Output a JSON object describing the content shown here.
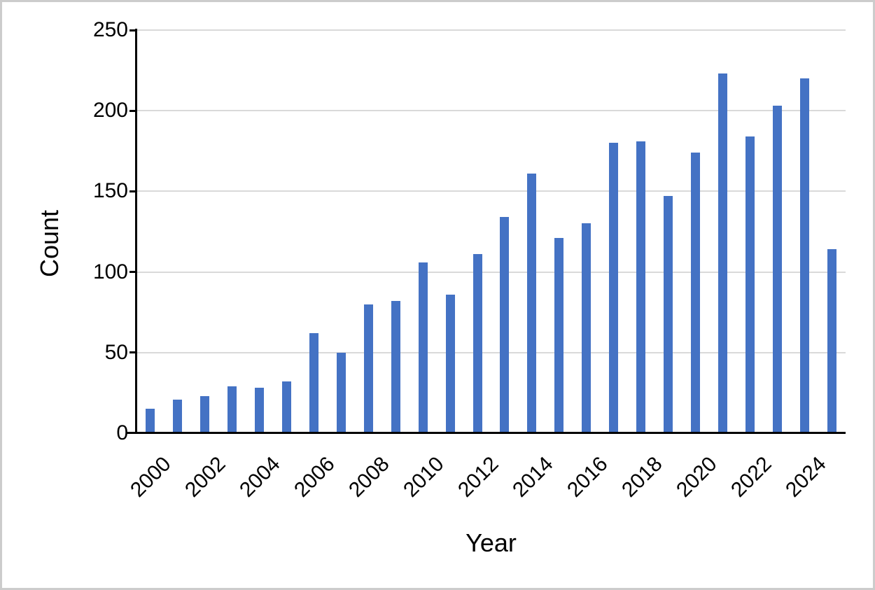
{
  "frame": {
    "background": "#ffffff",
    "border_color": "#cccccc"
  },
  "chart_data": {
    "type": "bar",
    "title": "",
    "xlabel": "Year",
    "ylabel": "Count",
    "categories": [
      2000,
      2001,
      2002,
      2003,
      2004,
      2005,
      2006,
      2007,
      2008,
      2009,
      2010,
      2011,
      2012,
      2013,
      2014,
      2015,
      2016,
      2017,
      2018,
      2019,
      2020,
      2021,
      2022,
      2023,
      2024,
      2025
    ],
    "values": [
      15,
      21,
      23,
      29,
      28,
      32,
      62,
      50,
      80,
      82,
      106,
      86,
      111,
      134,
      161,
      121,
      130,
      180,
      181,
      147,
      174,
      223,
      184,
      203,
      220,
      114
    ],
    "x_tick_labels": [
      "2000",
      "2002",
      "2004",
      "2006",
      "2008",
      "2010",
      "2012",
      "2014",
      "2016",
      "2018",
      "2020",
      "2022",
      "2024"
    ],
    "y_ticks": [
      0,
      50,
      100,
      150,
      200,
      250
    ],
    "ylim": [
      0,
      250
    ],
    "grid": "horizontal",
    "legend": "none",
    "bar_color": "#4472C4",
    "gridline_color": "#d9d9d9",
    "axis_color": "#000000",
    "text_color": "#000000"
  }
}
